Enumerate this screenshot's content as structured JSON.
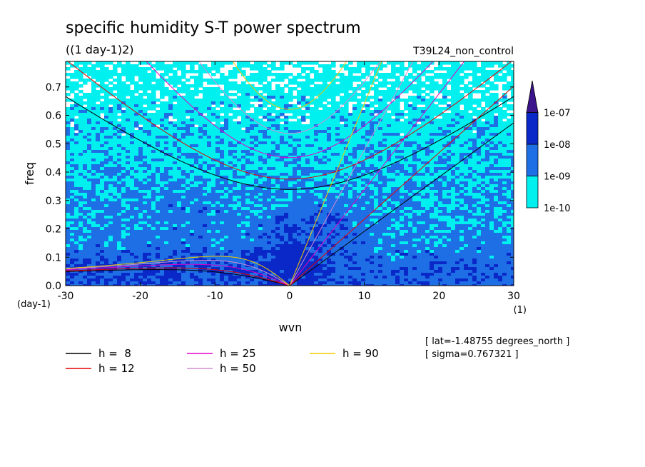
{
  "chart_data": {
    "type": "heatmap",
    "title": "specific humidity S-T power spectrum",
    "subtitle": "((1 day-1)2)",
    "run_label": "T39L24_non_control",
    "xlabel": "wvn",
    "ylabel": "freq",
    "x_unit": "(1)",
    "y_unit": "(day-1)",
    "xlim": [
      -30,
      30
    ],
    "ylim": [
      0,
      0.79
    ],
    "x_ticks": [
      -30,
      -20,
      -10,
      0,
      10,
      20,
      30
    ],
    "x_tick_labels": [
      "-30",
      "-20",
      "-10",
      "0",
      "10",
      "20",
      "30"
    ],
    "y_ticks": [
      0,
      0.1,
      0.2,
      0.3,
      0.4,
      0.5,
      0.6,
      0.7
    ],
    "y_tick_labels": [
      "0.0",
      "0.1",
      "0.2",
      "0.3",
      "0.4",
      "0.5",
      "0.6",
      "0.7"
    ],
    "color_levels": [
      {
        "label": "1e-10",
        "color": "#00f0f0"
      },
      {
        "label": "1e-09",
        "color": "#1e6ee6"
      },
      {
        "label": "1e-08",
        "color": "#0a28c8"
      },
      {
        "label": "1e-07",
        "color": "#3c148c"
      }
    ],
    "dispersion_curves": [
      {
        "name": "h =  8",
        "h": 8,
        "color": "#000000"
      },
      {
        "name": "h = 12",
        "h": 12,
        "color": "#e60000"
      },
      {
        "name": "h = 25",
        "h": 25,
        "color": "#e600c8"
      },
      {
        "name": "h = 50",
        "h": 50,
        "color": "#d28cd2"
      },
      {
        "name": "h = 90",
        "h": 90,
        "color": "#f0c800"
      }
    ],
    "annotations": [
      "[ lat=-1.48755 degrees_north ]",
      "[ sigma=0.767321 ]"
    ]
  }
}
